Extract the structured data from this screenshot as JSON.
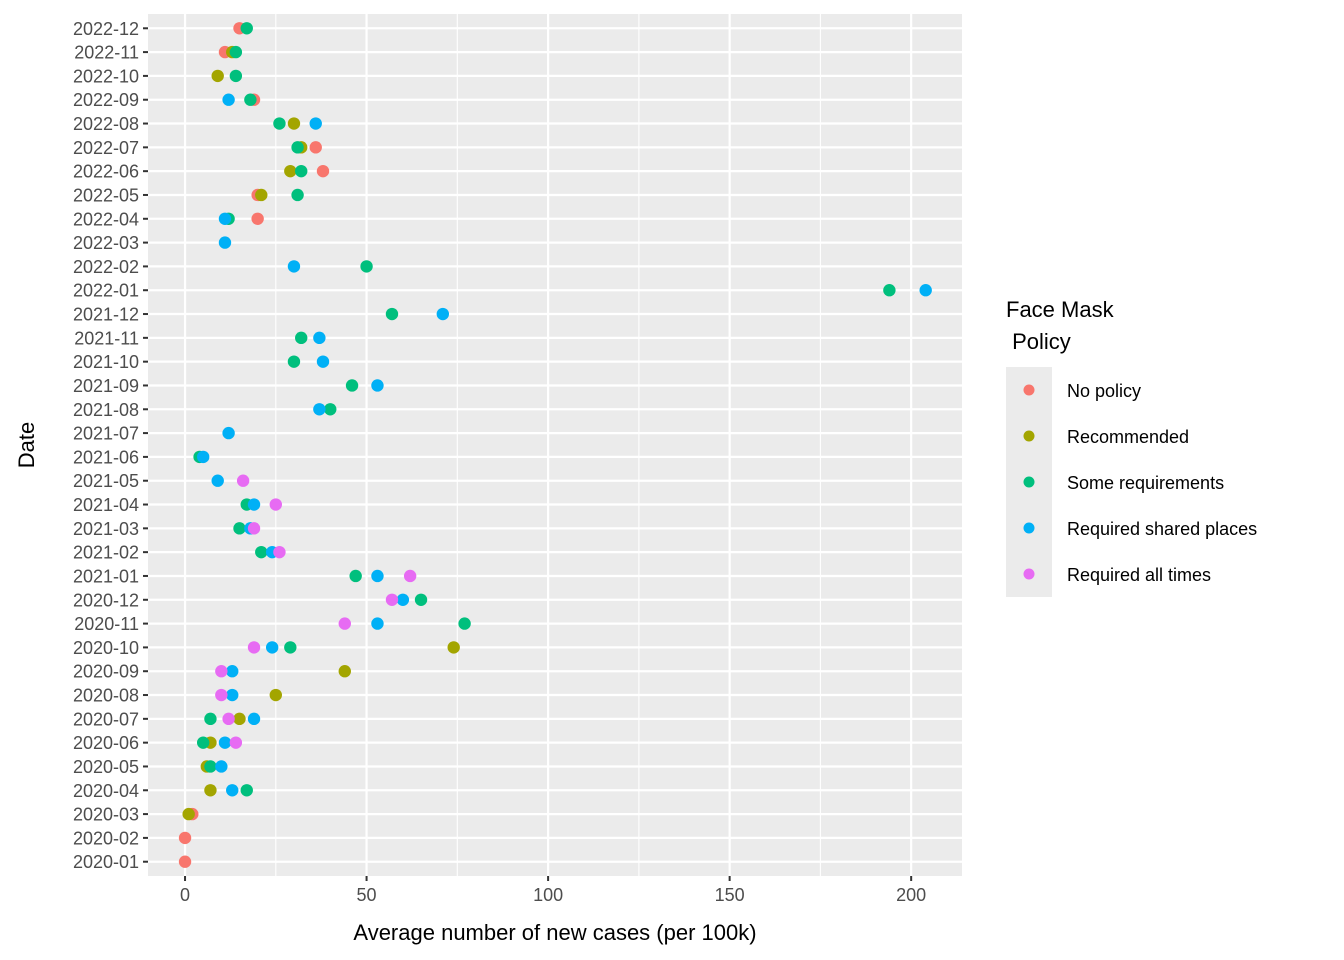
{
  "chart_data": {
    "type": "scatter",
    "title": "",
    "xlabel": "Average number of new cases (per 100k)",
    "ylabel": "Date",
    "xlim": [
      -10.2,
      214
    ],
    "x_ticks": [
      0,
      50,
      100,
      150,
      200
    ],
    "x_tick_labels": [
      "0",
      "50",
      "100",
      "150",
      "200"
    ],
    "grid": true,
    "legend": {
      "title_line1": "Face Mask",
      "title_line2": " Policy",
      "placement": "right"
    },
    "categories": [
      "2020-01",
      "2020-02",
      "2020-03",
      "2020-04",
      "2020-05",
      "2020-06",
      "2020-07",
      "2020-08",
      "2020-09",
      "2020-10",
      "2020-11",
      "2020-12",
      "2021-01",
      "2021-02",
      "2021-03",
      "2021-04",
      "2021-05",
      "2021-06",
      "2021-07",
      "2021-08",
      "2021-09",
      "2021-10",
      "2021-11",
      "2021-12",
      "2022-01",
      "2022-02",
      "2022-03",
      "2022-04",
      "2022-05",
      "2022-06",
      "2022-07",
      "2022-08",
      "2022-09",
      "2022-10",
      "2022-11",
      "2022-12"
    ],
    "series": [
      {
        "name": "No policy",
        "color": "#F8766D",
        "points": [
          {
            "date": "2020-01",
            "value": 0
          },
          {
            "date": "2020-02",
            "value": 0
          },
          {
            "date": "2020-03",
            "value": 2
          },
          {
            "date": "2022-04",
            "value": 20
          },
          {
            "date": "2022-05",
            "value": 20
          },
          {
            "date": "2022-06",
            "value": 38
          },
          {
            "date": "2022-07",
            "value": 36
          },
          {
            "date": "2022-09",
            "value": 19
          },
          {
            "date": "2022-11",
            "value": 11
          },
          {
            "date": "2022-12",
            "value": 15
          }
        ]
      },
      {
        "name": "Recommended",
        "color": "#A3A500",
        "points": [
          {
            "date": "2020-03",
            "value": 1
          },
          {
            "date": "2020-04",
            "value": 7
          },
          {
            "date": "2020-05",
            "value": 6
          },
          {
            "date": "2020-06",
            "value": 7
          },
          {
            "date": "2020-07",
            "value": 15
          },
          {
            "date": "2020-08",
            "value": 25
          },
          {
            "date": "2020-09",
            "value": 44
          },
          {
            "date": "2020-10",
            "value": 74
          },
          {
            "date": "2022-05",
            "value": 21
          },
          {
            "date": "2022-06",
            "value": 29
          },
          {
            "date": "2022-07",
            "value": 32
          },
          {
            "date": "2022-08",
            "value": 30
          },
          {
            "date": "2022-10",
            "value": 9
          },
          {
            "date": "2022-11",
            "value": 13
          }
        ]
      },
      {
        "name": "Some requirements",
        "color": "#00BF7D",
        "points": [
          {
            "date": "2020-04",
            "value": 17
          },
          {
            "date": "2020-05",
            "value": 7
          },
          {
            "date": "2020-06",
            "value": 5
          },
          {
            "date": "2020-07",
            "value": 7
          },
          {
            "date": "2020-10",
            "value": 29
          },
          {
            "date": "2020-11",
            "value": 77
          },
          {
            "date": "2020-12",
            "value": 65
          },
          {
            "date": "2021-01",
            "value": 47
          },
          {
            "date": "2021-02",
            "value": 21
          },
          {
            "date": "2021-03",
            "value": 15
          },
          {
            "date": "2021-04",
            "value": 17
          },
          {
            "date": "2021-06",
            "value": 4
          },
          {
            "date": "2021-08",
            "value": 40
          },
          {
            "date": "2021-09",
            "value": 46
          },
          {
            "date": "2021-10",
            "value": 30
          },
          {
            "date": "2021-11",
            "value": 32
          },
          {
            "date": "2021-12",
            "value": 57
          },
          {
            "date": "2022-01",
            "value": 194
          },
          {
            "date": "2022-02",
            "value": 50
          },
          {
            "date": "2022-04",
            "value": 12
          },
          {
            "date": "2022-05",
            "value": 31
          },
          {
            "date": "2022-06",
            "value": 32
          },
          {
            "date": "2022-07",
            "value": 31
          },
          {
            "date": "2022-08",
            "value": 26
          },
          {
            "date": "2022-09",
            "value": 18
          },
          {
            "date": "2022-10",
            "value": 14
          },
          {
            "date": "2022-11",
            "value": 14
          },
          {
            "date": "2022-12",
            "value": 17
          }
        ]
      },
      {
        "name": "Required shared places",
        "color": "#00B0F6",
        "points": [
          {
            "date": "2020-04",
            "value": 13
          },
          {
            "date": "2020-05",
            "value": 10
          },
          {
            "date": "2020-06",
            "value": 11
          },
          {
            "date": "2020-07",
            "value": 19
          },
          {
            "date": "2020-08",
            "value": 13
          },
          {
            "date": "2020-09",
            "value": 13
          },
          {
            "date": "2020-10",
            "value": 24
          },
          {
            "date": "2020-11",
            "value": 53
          },
          {
            "date": "2020-12",
            "value": 60
          },
          {
            "date": "2021-01",
            "value": 53
          },
          {
            "date": "2021-02",
            "value": 24
          },
          {
            "date": "2021-03",
            "value": 18
          },
          {
            "date": "2021-04",
            "value": 19
          },
          {
            "date": "2021-05",
            "value": 9
          },
          {
            "date": "2021-06",
            "value": 5
          },
          {
            "date": "2021-07",
            "value": 12
          },
          {
            "date": "2021-08",
            "value": 37
          },
          {
            "date": "2021-09",
            "value": 53
          },
          {
            "date": "2021-10",
            "value": 38
          },
          {
            "date": "2021-11",
            "value": 37
          },
          {
            "date": "2021-12",
            "value": 71
          },
          {
            "date": "2022-01",
            "value": 204
          },
          {
            "date": "2022-02",
            "value": 30
          },
          {
            "date": "2022-03",
            "value": 11
          },
          {
            "date": "2022-04",
            "value": 11
          },
          {
            "date": "2022-08",
            "value": 36
          },
          {
            "date": "2022-09",
            "value": 12
          }
        ]
      },
      {
        "name": "Required all times",
        "color": "#E76BF3",
        "points": [
          {
            "date": "2020-06",
            "value": 14
          },
          {
            "date": "2020-07",
            "value": 12
          },
          {
            "date": "2020-08",
            "value": 10
          },
          {
            "date": "2020-09",
            "value": 10
          },
          {
            "date": "2020-10",
            "value": 19
          },
          {
            "date": "2020-11",
            "value": 44
          },
          {
            "date": "2020-12",
            "value": 57
          },
          {
            "date": "2021-01",
            "value": 62
          },
          {
            "date": "2021-02",
            "value": 26
          },
          {
            "date": "2021-03",
            "value": 19
          },
          {
            "date": "2021-04",
            "value": 25
          },
          {
            "date": "2021-05",
            "value": 16
          }
        ]
      }
    ]
  }
}
